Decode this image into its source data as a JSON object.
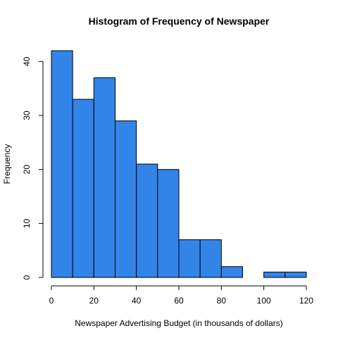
{
  "chart_data": {
    "type": "bar",
    "title": "Histogram of Frequency of Newspaper",
    "xlabel": "Newspaper Advertising Budget (in thousands of dollars)",
    "ylabel": "Frequency",
    "bins": [
      {
        "from": 0,
        "to": 10,
        "value": 42
      },
      {
        "from": 10,
        "to": 20,
        "value": 33
      },
      {
        "from": 20,
        "to": 30,
        "value": 37
      },
      {
        "from": 30,
        "to": 40,
        "value": 29
      },
      {
        "from": 40,
        "to": 50,
        "value": 21
      },
      {
        "from": 50,
        "to": 60,
        "value": 20
      },
      {
        "from": 60,
        "to": 70,
        "value": 7
      },
      {
        "from": 70,
        "to": 80,
        "value": 7
      },
      {
        "from": 80,
        "to": 90,
        "value": 2
      },
      {
        "from": 90,
        "to": 100,
        "value": 0
      },
      {
        "from": 100,
        "to": 110,
        "value": 1
      },
      {
        "from": 110,
        "to": 120,
        "value": 1
      }
    ],
    "xlim": [
      0,
      120
    ],
    "ylim": [
      0,
      42
    ],
    "x_ticks": [
      "0",
      "20",
      "40",
      "60",
      "80",
      "100",
      "120"
    ],
    "y_ticks": [
      "0",
      "10",
      "20",
      "30",
      "40"
    ],
    "bar_color": "#3384E8",
    "grid": false,
    "legend": "none"
  }
}
